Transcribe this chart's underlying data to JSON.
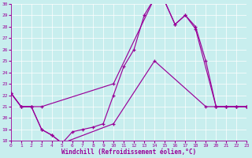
{
  "xlabel": "Windchill (Refroidissement éolien,°C)",
  "bg_color": "#c8eeee",
  "line_color": "#990099",
  "xlim": [
    0,
    23
  ],
  "ylim": [
    18,
    30
  ],
  "yticks": [
    18,
    19,
    20,
    21,
    22,
    23,
    24,
    25,
    26,
    27,
    28,
    29,
    30
  ],
  "xticks": [
    0,
    1,
    2,
    3,
    4,
    5,
    6,
    7,
    8,
    9,
    10,
    11,
    12,
    13,
    14,
    15,
    16,
    17,
    18,
    19,
    20,
    21,
    22,
    23
  ],
  "line1_x": [
    0,
    1,
    2,
    3,
    4,
    5,
    6,
    7,
    8,
    9,
    10,
    11,
    12,
    13,
    14,
    15,
    16,
    17,
    18,
    19,
    20,
    21,
    22,
    23
  ],
  "line1_y": [
    22.2,
    21.0,
    21.0,
    19.0,
    18.5,
    17.8,
    18.8,
    19.0,
    19.2,
    19.5,
    22.0,
    24.5,
    26.0,
    29.0,
    30.5,
    30.2,
    28.2,
    29.0,
    28.0,
    25.0,
    21.0,
    21.0,
    21.0,
    21.0
  ],
  "line2_x": [
    0,
    1,
    2,
    3,
    10,
    14,
    15,
    16,
    17,
    18,
    20,
    21,
    22,
    23
  ],
  "line2_y": [
    22.2,
    21.0,
    21.0,
    21.0,
    23.0,
    30.5,
    30.2,
    28.2,
    29.0,
    27.8,
    21.0,
    21.0,
    21.0,
    21.0
  ],
  "line3_x": [
    0,
    1,
    2,
    3,
    4,
    5,
    10,
    14,
    19,
    20,
    21,
    22,
    23
  ],
  "line3_y": [
    22.2,
    21.0,
    21.0,
    19.0,
    18.5,
    17.8,
    19.5,
    25.0,
    21.0,
    21.0,
    21.0,
    21.0,
    21.0
  ]
}
